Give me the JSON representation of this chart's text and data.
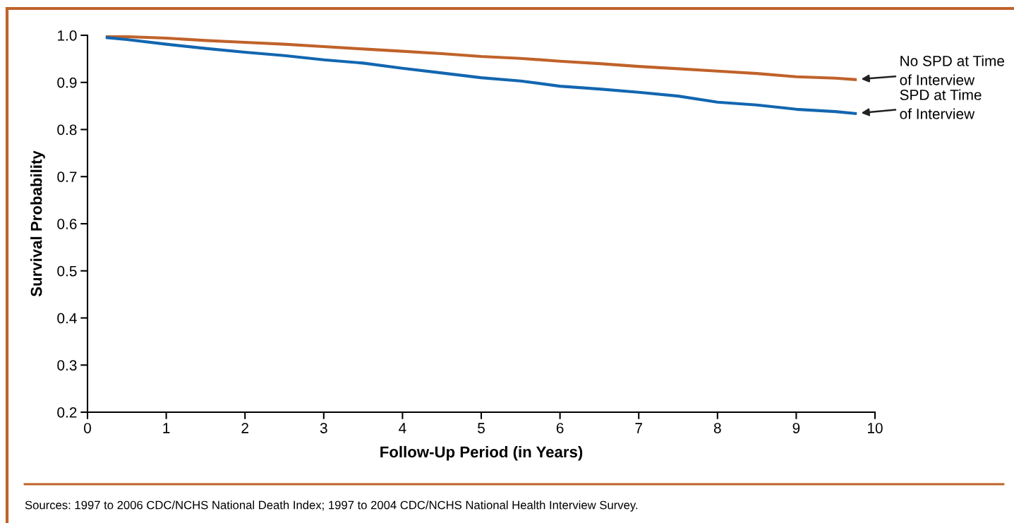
{
  "chart_data": {
    "type": "line",
    "xlabel": "Follow-Up Period (in Years)",
    "ylabel": "Survival Probability",
    "xlim": [
      0,
      10
    ],
    "xticks": [
      0,
      1,
      2,
      3,
      4,
      5,
      6,
      7,
      8,
      9,
      10
    ],
    "ylim": [
      0.2,
      1.0
    ],
    "yticks": [
      {
        "value": 0.2,
        "label": "0.2"
      },
      {
        "value": 0.3,
        "label": "0.3"
      },
      {
        "value": 0.4,
        "label": "0.4"
      },
      {
        "value": 0.5,
        "label": "0.5"
      },
      {
        "value": 0.6,
        "label": "0.6"
      },
      {
        "value": 0.7,
        "label": "0.7"
      },
      {
        "value": 0.8,
        "label": "0.8"
      },
      {
        "value": 0.9,
        "label": "0.9"
      },
      {
        "value": 1.0,
        "label": "1.0"
      }
    ],
    "x": [
      0.25,
      0.5,
      1,
      1.5,
      2,
      2.5,
      3,
      3.5,
      4,
      4.5,
      5,
      5.5,
      6,
      6.5,
      7,
      7.5,
      8,
      8.5,
      9,
      9.5,
      9.75
    ],
    "series": [
      {
        "name": "No SPD at Time of Interview",
        "color": "#c0622a",
        "values": [
          0.999,
          0.997,
          0.994,
          0.989,
          0.985,
          0.981,
          0.976,
          0.971,
          0.966,
          0.961,
          0.955,
          0.951,
          0.945,
          0.94,
          0.934,
          0.929,
          0.924,
          0.919,
          0.912,
          0.909,
          0.906
        ]
      },
      {
        "name": "SPD at Time of Interview",
        "color": "#1266b0",
        "values": [
          0.995,
          0.991,
          0.981,
          0.972,
          0.964,
          0.957,
          0.948,
          0.941,
          0.93,
          0.92,
          0.91,
          0.903,
          0.892,
          0.886,
          0.879,
          0.871,
          0.858,
          0.852,
          0.843,
          0.838,
          0.834
        ]
      }
    ],
    "grid": false,
    "legend": false,
    "marker": "none",
    "line_style": "solid",
    "annotations": [
      "Sources: 1997 to 2006 CDC/NCHS National Death Index; 1997 to 2004 CDC/NCHS National Health Interview Survey."
    ]
  }
}
